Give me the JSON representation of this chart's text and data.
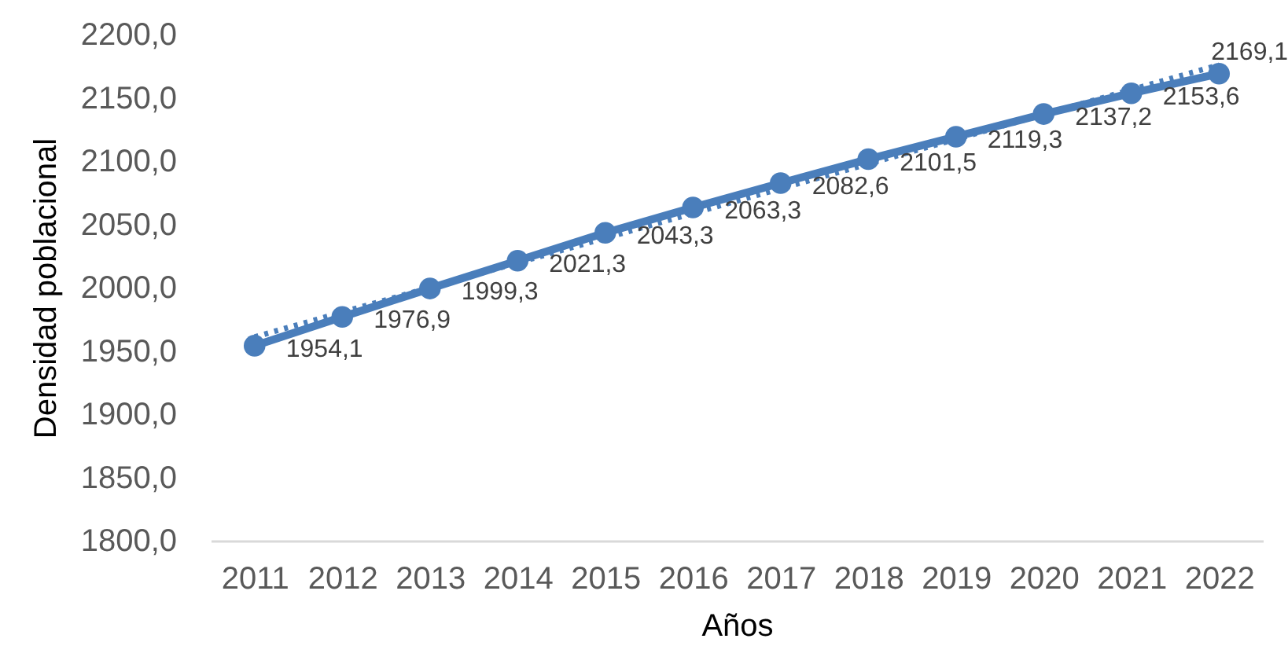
{
  "chart_data": {
    "type": "line",
    "xlabel": "Años",
    "ylabel": "Densidad poblacional",
    "x": [
      2011,
      2012,
      2013,
      2014,
      2015,
      2016,
      2017,
      2018,
      2019,
      2020,
      2021,
      2022
    ],
    "series": [
      {
        "type": "line",
        "color": "#4a7ebb",
        "x": [
          2011,
          2022
        ],
        "values": [
          1961,
          2176
        ],
        "line_style": "dotted",
        "marker": "none"
      },
      {
        "color": "#4a7ebb",
        "values": [
          1954.1,
          1976.9,
          1999.3,
          2021.3,
          2043.3,
          2063.3,
          2082.6,
          2101.5,
          2119.3,
          2137.2,
          2153.6,
          2169.1
        ],
        "value_labels": [
          "1954,1",
          "1976,9",
          "1999,3",
          "2021,3",
          "2043,3",
          "2063,3",
          "2082,6",
          "2101,5",
          "2119,3",
          "2137,2",
          "2153,6",
          "2169,1"
        ]
      }
    ],
    "marker": "circle",
    "line_style": "solid",
    "xlim": [
      2010.5,
      2022.5
    ],
    "xticks": [
      2011,
      2012,
      2013,
      2014,
      2015,
      2016,
      2017,
      2018,
      2019,
      2020,
      2021,
      2022
    ],
    "ylim": [
      1800,
      2200
    ],
    "yticks": [
      {
        "value": 1800,
        "label": "1800,0"
      },
      {
        "value": 1850,
        "label": "1850,0"
      },
      {
        "value": 1900,
        "label": "1900,0"
      },
      {
        "value": 1950,
        "label": "1950,0"
      },
      {
        "value": 2000,
        "label": "2000,0"
      },
      {
        "value": 2050,
        "label": "2050,0"
      },
      {
        "value": 2100,
        "label": "2100,0"
      },
      {
        "value": 2150,
        "label": "2150,0"
      },
      {
        "value": 2200,
        "label": "2200,0"
      }
    ]
  }
}
